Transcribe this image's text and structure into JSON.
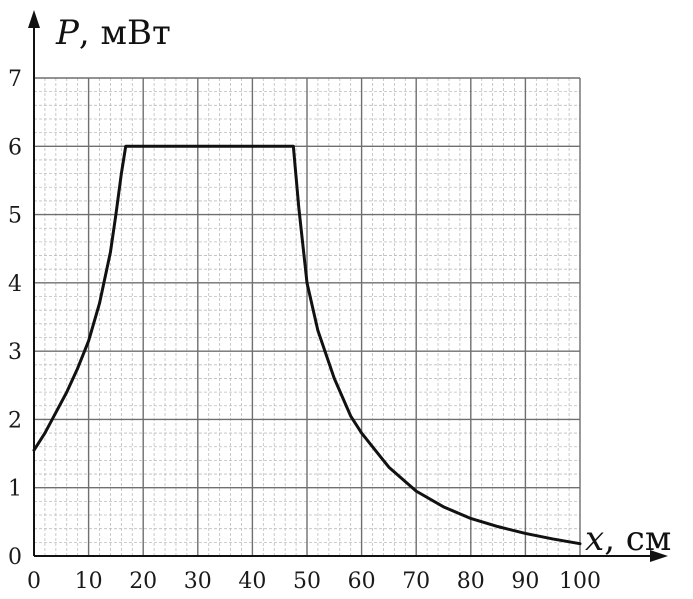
{
  "chart_data": {
    "type": "line",
    "title": "",
    "ylabel_var": "P",
    "ylabel_unit": ", мВт",
    "xlabel_var": "x",
    "xlabel_unit": ", см",
    "xlim": [
      0,
      100
    ],
    "ylim": [
      0,
      7
    ],
    "x_ticks": [
      0,
      10,
      20,
      30,
      40,
      50,
      60,
      70,
      80,
      90,
      100
    ],
    "y_ticks": [
      0,
      1,
      2,
      3,
      4,
      5,
      6,
      7
    ],
    "x_tick_labels": [
      "0",
      "10",
      "20",
      "30",
      "40",
      "50",
      "60",
      "70",
      "80",
      "90",
      "100"
    ],
    "y_tick_labels": [
      "0",
      "1",
      "2",
      "3",
      "4",
      "5",
      "6",
      "7"
    ],
    "grid": {
      "major": true,
      "minor": true,
      "minor_per_major": 5
    },
    "colors": {
      "line": "#111111",
      "grid_major": "#6f6f6f",
      "grid_minor": "#bdbdbd",
      "axis": "#111111"
    },
    "series": [
      {
        "points": [
          [
            0,
            1.55
          ],
          [
            2,
            1.8
          ],
          [
            4,
            2.1
          ],
          [
            6,
            2.4
          ],
          [
            8,
            2.75
          ],
          [
            10,
            3.15
          ],
          [
            12,
            3.7
          ],
          [
            14,
            4.45
          ],
          [
            15,
            5.0
          ],
          [
            16,
            5.6
          ],
          [
            16.8,
            6.0
          ],
          [
            20,
            6.0
          ],
          [
            30,
            6.0
          ],
          [
            40,
            6.0
          ],
          [
            47.5,
            6.0
          ],
          [
            48.5,
            5.1
          ],
          [
            50,
            4.0
          ],
          [
            52,
            3.3
          ],
          [
            55,
            2.6
          ],
          [
            58,
            2.05
          ],
          [
            60,
            1.8
          ],
          [
            65,
            1.3
          ],
          [
            70,
            0.95
          ],
          [
            75,
            0.72
          ],
          [
            80,
            0.55
          ],
          [
            85,
            0.43
          ],
          [
            90,
            0.33
          ],
          [
            95,
            0.25
          ],
          [
            100,
            0.18
          ]
        ]
      }
    ]
  }
}
